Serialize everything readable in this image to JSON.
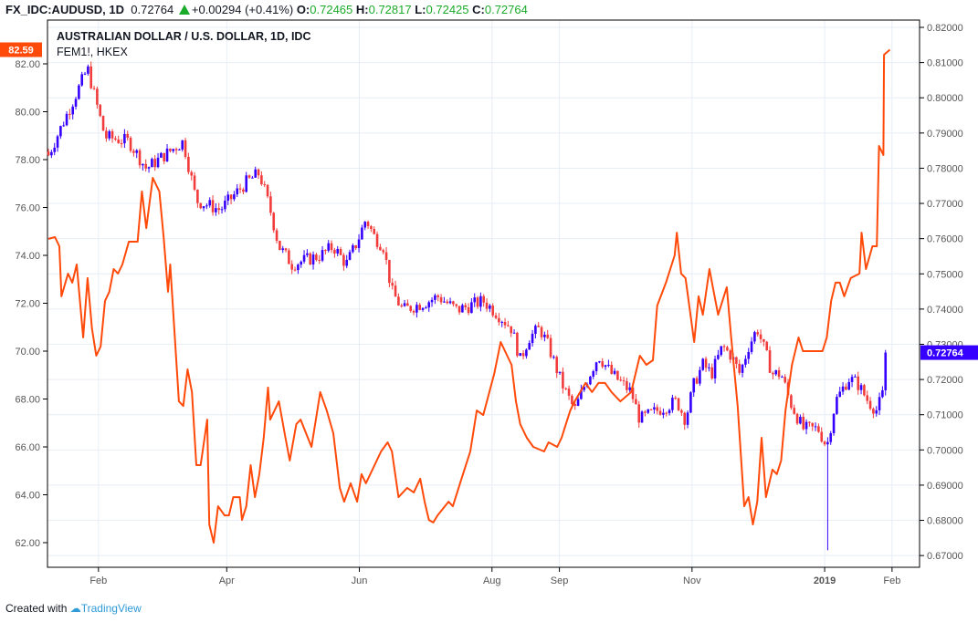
{
  "header": {
    "symbol": "FX_IDC:AUDUSD, 1D",
    "last": "0.72764",
    "change": "+0.00294 (+0.41%)",
    "o_label": "O:",
    "o": "0.72465",
    "h_label": "H:",
    "h": "0.72817",
    "l_label": "L:",
    "l": "0.72425",
    "c_label": "C:",
    "c": "0.72764"
  },
  "legend": {
    "title": "AUSTRALIAN DOLLAR / U.S. DOLLAR, 1D, IDC",
    "second": "FEM1!, HKEX"
  },
  "footer": {
    "created": "Created with",
    "brand": "TradingView"
  },
  "colors": {
    "up": "#3500ff",
    "down": "#f23b3b",
    "line": "#ff4a0a",
    "grid": "#e7eef5"
  },
  "chart_data": {
    "type": "candlestick+line",
    "x_labels": [
      {
        "label": "Feb",
        "day": 31
      },
      {
        "label": "Apr",
        "day": 90
      },
      {
        "label": "Jun",
        "day": 151
      },
      {
        "label": "Aug",
        "day": 212
      },
      {
        "label": "Sep",
        "day": 243
      },
      {
        "label": "Nov",
        "day": 304
      },
      {
        "label": "2019",
        "day": 365
      },
      {
        "label": "Feb",
        "day": 396
      }
    ],
    "left_axis": {
      "ticks": [
        "62.00",
        "64.00",
        "66.00",
        "68.00",
        "70.00",
        "72.00",
        "74.00",
        "76.00",
        "78.00",
        "80.00",
        "82.00"
      ],
      "last_label": "82.59",
      "last": 82.59
    },
    "right_axis": {
      "ticks": [
        "0.67000",
        "0.68000",
        "0.69000",
        "0.70000",
        "0.71000",
        "0.72000",
        "0.73000",
        "0.74000",
        "0.75000",
        "0.76000",
        "0.77000",
        "0.78000",
        "0.79000",
        "0.80000",
        "0.81000",
        "0.82000"
      ],
      "last_label": "0.72764",
      "last": 0.72764
    },
    "audusd_close_waypoints": [
      [
        8,
        0.7837
      ],
      [
        26,
        0.8083
      ],
      [
        34,
        0.7889
      ],
      [
        45,
        0.7876
      ],
      [
        53,
        0.7799
      ],
      [
        70,
        0.7876
      ],
      [
        76,
        0.7708
      ],
      [
        87,
        0.7682
      ],
      [
        99,
        0.776
      ],
      [
        105,
        0.7786
      ],
      [
        110,
        0.7682
      ],
      [
        114,
        0.7578
      ],
      [
        120,
        0.7527
      ],
      [
        133,
        0.7552
      ],
      [
        139,
        0.7578
      ],
      [
        145,
        0.7527
      ],
      [
        150,
        0.7591
      ],
      [
        154,
        0.7656
      ],
      [
        158,
        0.7604
      ],
      [
        162,
        0.7578
      ],
      [
        166,
        0.7449
      ],
      [
        171,
        0.7397
      ],
      [
        183,
        0.7423
      ],
      [
        187,
        0.7436
      ],
      [
        196,
        0.7397
      ],
      [
        208,
        0.7423
      ],
      [
        215,
        0.7384
      ],
      [
        221,
        0.7345
      ],
      [
        225,
        0.7255
      ],
      [
        229,
        0.7319
      ],
      [
        234,
        0.7345
      ],
      [
        238,
        0.7294
      ],
      [
        244,
        0.719
      ],
      [
        250,
        0.7112
      ],
      [
        255,
        0.719
      ],
      [
        261,
        0.7268
      ],
      [
        267,
        0.7216
      ],
      [
        276,
        0.7164
      ],
      [
        280,
        0.7086
      ],
      [
        288,
        0.7112
      ],
      [
        297,
        0.7138
      ],
      [
        301,
        0.7086
      ],
      [
        305,
        0.719
      ],
      [
        309,
        0.7242
      ],
      [
        313,
        0.7216
      ],
      [
        318,
        0.7294
      ],
      [
        322,
        0.7268
      ],
      [
        326,
        0.7216
      ],
      [
        330,
        0.7294
      ],
      [
        334,
        0.7345
      ],
      [
        341,
        0.7216
      ],
      [
        345,
        0.7216
      ],
      [
        349,
        0.7138
      ],
      [
        355,
        0.706
      ],
      [
        362,
        0.706
      ],
      [
        366,
        0.7009
      ],
      [
        370,
        0.7138
      ],
      [
        376,
        0.7203
      ],
      [
        380,
        0.719
      ],
      [
        385,
        0.7138
      ],
      [
        389,
        0.7112
      ],
      [
        392,
        0.7164
      ],
      [
        394,
        0.72764
      ]
    ],
    "audusd_flash_low": {
      "day": 366,
      "low": 0.6715
    },
    "fem1_line": [
      [
        8,
        74.69
      ],
      [
        11,
        74.76
      ],
      [
        13,
        74.38
      ],
      [
        14,
        72.29
      ],
      [
        17,
        73.24
      ],
      [
        19,
        72.86
      ],
      [
        21,
        73.62
      ],
      [
        24,
        70.57
      ],
      [
        26,
        73.05
      ],
      [
        28,
        70.95
      ],
      [
        30,
        69.81
      ],
      [
        32,
        70.19
      ],
      [
        34,
        72.1
      ],
      [
        36,
        72.48
      ],
      [
        38,
        73.43
      ],
      [
        40,
        73.24
      ],
      [
        42,
        73.62
      ],
      [
        45,
        74.57
      ],
      [
        49,
        74.57
      ],
      [
        51,
        76.67
      ],
      [
        53,
        75.14
      ],
      [
        56,
        77.24
      ],
      [
        59,
        76.67
      ],
      [
        61,
        74.76
      ],
      [
        63,
        72.48
      ],
      [
        64,
        73.62
      ],
      [
        68,
        67.9
      ],
      [
        70,
        67.71
      ],
      [
        72,
        69.24
      ],
      [
        74,
        68.29
      ],
      [
        76,
        65.24
      ],
      [
        78,
        65.24
      ],
      [
        81,
        67.14
      ],
      [
        82,
        62.76
      ],
      [
        84,
        62.0
      ],
      [
        86,
        63.52
      ],
      [
        89,
        63.14
      ],
      [
        91,
        63.14
      ],
      [
        93,
        63.9
      ],
      [
        96,
        63.9
      ],
      [
        97,
        62.95
      ],
      [
        99,
        63.52
      ],
      [
        101,
        65.24
      ],
      [
        103,
        63.9
      ],
      [
        105,
        64.86
      ],
      [
        107,
        66.38
      ],
      [
        109,
        68.48
      ],
      [
        110,
        67.14
      ],
      [
        114,
        67.9
      ],
      [
        117,
        66.38
      ],
      [
        119,
        65.43
      ],
      [
        122,
        66.95
      ],
      [
        124,
        67.14
      ],
      [
        129,
        66.0
      ],
      [
        131,
        67.14
      ],
      [
        133,
        68.29
      ],
      [
        136,
        67.52
      ],
      [
        139,
        66.57
      ],
      [
        142,
        64.29
      ],
      [
        144,
        63.71
      ],
      [
        147,
        64.48
      ],
      [
        150,
        63.71
      ],
      [
        152,
        64.86
      ],
      [
        154,
        64.48
      ],
      [
        158,
        65.24
      ],
      [
        161,
        65.81
      ],
      [
        164,
        66.19
      ],
      [
        166,
        65.81
      ],
      [
        169,
        63.9
      ],
      [
        173,
        64.29
      ],
      [
        176,
        64.1
      ],
      [
        179,
        64.67
      ],
      [
        181,
        63.71
      ],
      [
        183,
        62.95
      ],
      [
        185,
        62.84
      ],
      [
        187,
        63.14
      ],
      [
        192,
        63.71
      ],
      [
        194,
        63.52
      ],
      [
        198,
        64.67
      ],
      [
        202,
        65.81
      ],
      [
        205,
        67.52
      ],
      [
        208,
        67.33
      ],
      [
        213,
        69.05
      ],
      [
        216,
        70.38
      ],
      [
        219,
        69.81
      ],
      [
        221,
        69.43
      ],
      [
        223,
        67.9
      ],
      [
        225,
        66.95
      ],
      [
        228,
        66.38
      ],
      [
        231,
        66.0
      ],
      [
        236,
        65.81
      ],
      [
        238,
        66.19
      ],
      [
        242,
        66.0
      ],
      [
        244,
        66.38
      ],
      [
        246,
        66.95
      ],
      [
        248,
        67.52
      ],
      [
        250,
        67.9
      ],
      [
        255,
        68.67
      ],
      [
        258,
        68.29
      ],
      [
        261,
        68.67
      ],
      [
        264,
        68.67
      ],
      [
        267,
        68.29
      ],
      [
        271,
        67.9
      ],
      [
        276,
        68.29
      ],
      [
        280,
        69.81
      ],
      [
        283,
        69.43
      ],
      [
        286,
        69.62
      ],
      [
        288,
        71.9
      ],
      [
        292,
        72.86
      ],
      [
        296,
        74.0
      ],
      [
        297,
        74.95
      ],
      [
        299,
        73.24
      ],
      [
        301,
        73.05
      ],
      [
        305,
        70.38
      ],
      [
        307,
        72.29
      ],
      [
        309,
        71.52
      ],
      [
        312,
        73.43
      ],
      [
        314,
        72.48
      ],
      [
        316,
        71.52
      ],
      [
        320,
        72.67
      ],
      [
        322,
        70.57
      ],
      [
        325,
        67.71
      ],
      [
        328,
        63.52
      ],
      [
        330,
        63.9
      ],
      [
        332,
        62.76
      ],
      [
        334,
        63.71
      ],
      [
        336,
        66.38
      ],
      [
        338,
        63.9
      ],
      [
        341,
        65.05
      ],
      [
        343,
        64.86
      ],
      [
        345,
        65.43
      ],
      [
        347,
        67.52
      ],
      [
        350,
        69.43
      ],
      [
        353,
        70.57
      ],
      [
        355,
        70.0
      ],
      [
        358,
        70.0
      ],
      [
        361,
        70.0
      ],
      [
        364,
        70.0
      ],
      [
        366,
        70.57
      ],
      [
        368,
        72.1
      ],
      [
        370,
        72.86
      ],
      [
        372,
        72.86
      ],
      [
        374,
        72.29
      ],
      [
        377,
        73.05
      ],
      [
        381,
        73.24
      ],
      [
        382,
        74.95
      ],
      [
        384,
        73.43
      ],
      [
        387,
        74.38
      ],
      [
        389,
        74.38
      ],
      [
        390,
        78.57
      ],
      [
        392,
        78.19
      ],
      [
        392.3,
        82.38
      ],
      [
        395,
        82.59
      ]
    ]
  }
}
